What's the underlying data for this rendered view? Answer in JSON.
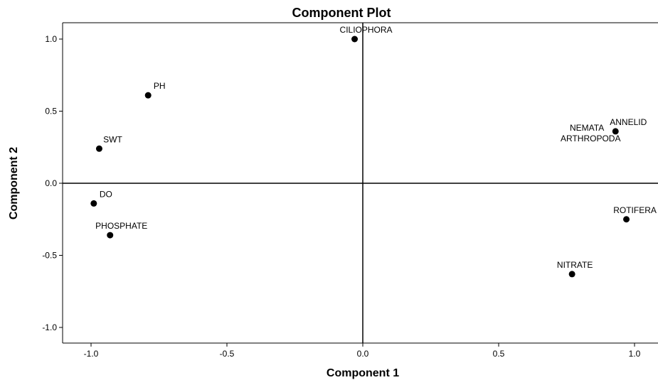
{
  "chart_data": {
    "type": "scatter",
    "title": "Component Plot",
    "xlabel": "Component 1",
    "ylabel": "Component 2",
    "xlim": [
      -1.1,
      1.08
    ],
    "ylim": [
      -1.1,
      1.12
    ],
    "x_ticks": [
      "-1.0",
      "-0.5",
      "0.0",
      "0.5",
      "1.0"
    ],
    "y_ticks": [
      "1.0",
      "0.5",
      "0.0",
      "-0.5",
      "-1.0"
    ],
    "x_tick_values": [
      -1.0,
      -0.5,
      0.0,
      0.5,
      1.0
    ],
    "y_tick_values": [
      1.0,
      0.5,
      0.0,
      -0.5,
      -1.0
    ],
    "grid": false,
    "reference_lines": {
      "x": 0,
      "y": 0
    },
    "marker_color": "#000000",
    "points": [
      {
        "label": "CILIOPHORA",
        "x": -0.03,
        "y": 1.0
      },
      {
        "label": "PH",
        "x": -0.79,
        "y": 0.61
      },
      {
        "label": "SWT",
        "x": -0.97,
        "y": 0.24
      },
      {
        "label": "DO",
        "x": -0.99,
        "y": -0.14
      },
      {
        "label": "PHOSPHATE",
        "x": -0.93,
        "y": -0.36
      },
      {
        "label": "ANNELID",
        "x": 0.93,
        "y": 0.36
      },
      {
        "label": "NEMATA",
        "x": 0.93,
        "y": 0.36
      },
      {
        "label": "ARTHROPODA",
        "x": 0.93,
        "y": 0.36
      },
      {
        "label": "ROTIFERA",
        "x": 0.97,
        "y": -0.25
      },
      {
        "label": "NITRATE",
        "x": 0.77,
        "y": -0.63
      }
    ]
  }
}
